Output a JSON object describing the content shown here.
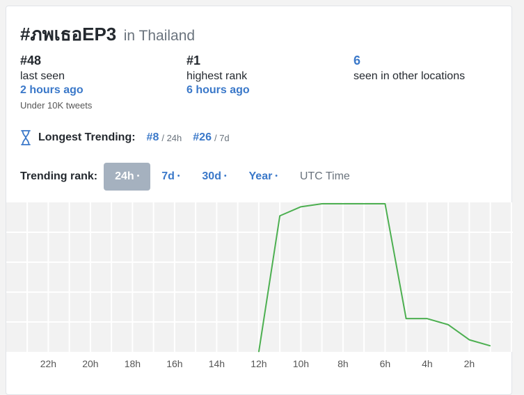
{
  "header": {
    "hashtag": "#ภพเธอEP3",
    "location": "in Thailand"
  },
  "stats": {
    "last_seen": {
      "value": "#48",
      "label": "last seen",
      "time": "2 hours ago",
      "note": "Under 10K tweets"
    },
    "highest": {
      "value": "#1",
      "label": "highest rank",
      "time": "6 hours ago"
    },
    "other": {
      "value": "6",
      "label": "seen in other locations"
    }
  },
  "longest": {
    "label": "Longest Trending:",
    "icon": "hourglass-icon",
    "entries": [
      {
        "rank": "#8",
        "period": "/ 24h"
      },
      {
        "rank": "#26",
        "period": "/ 7d"
      }
    ]
  },
  "trending": {
    "label": "Trending rank:",
    "tabs": [
      {
        "label": "24h",
        "active": true
      },
      {
        "label": "7d",
        "active": false
      },
      {
        "label": "30d",
        "active": false
      },
      {
        "label": "Year",
        "active": false
      }
    ],
    "dot": "•",
    "utc_label": "UTC Time"
  },
  "colors": {
    "accent": "#3a78c9",
    "line": "#4caf50",
    "grid_bg": "#f2f2f2",
    "active_tab": "#a5b1bf"
  },
  "chart_data": {
    "type": "line",
    "x_unit": "hours ago",
    "x_tick_labels": [
      "22h",
      "20h",
      "18h",
      "16h",
      "14h",
      "12h",
      "10h",
      "8h",
      "6h",
      "4h",
      "2h"
    ],
    "x_ticks": [
      22,
      20,
      18,
      16,
      14,
      12,
      10,
      8,
      6,
      4,
      2
    ],
    "xlim": [
      24,
      0
    ],
    "y_rank_range": [
      1,
      50
    ],
    "series": [
      {
        "points": [
          {
            "x": 12,
            "y": 50
          },
          {
            "x": 11,
            "y": 5
          },
          {
            "x": 10,
            "y": 2
          },
          {
            "x": 9,
            "y": 1
          },
          {
            "x": 8,
            "y": 1
          },
          {
            "x": 7,
            "y": 1
          },
          {
            "x": 6,
            "y": 1
          },
          {
            "x": 5,
            "y": 39
          },
          {
            "x": 4,
            "y": 39
          },
          {
            "x": 3,
            "y": 41
          },
          {
            "x": 2,
            "y": 46
          },
          {
            "x": 1,
            "y": 48
          }
        ]
      }
    ],
    "grid": true,
    "legend": "none"
  }
}
